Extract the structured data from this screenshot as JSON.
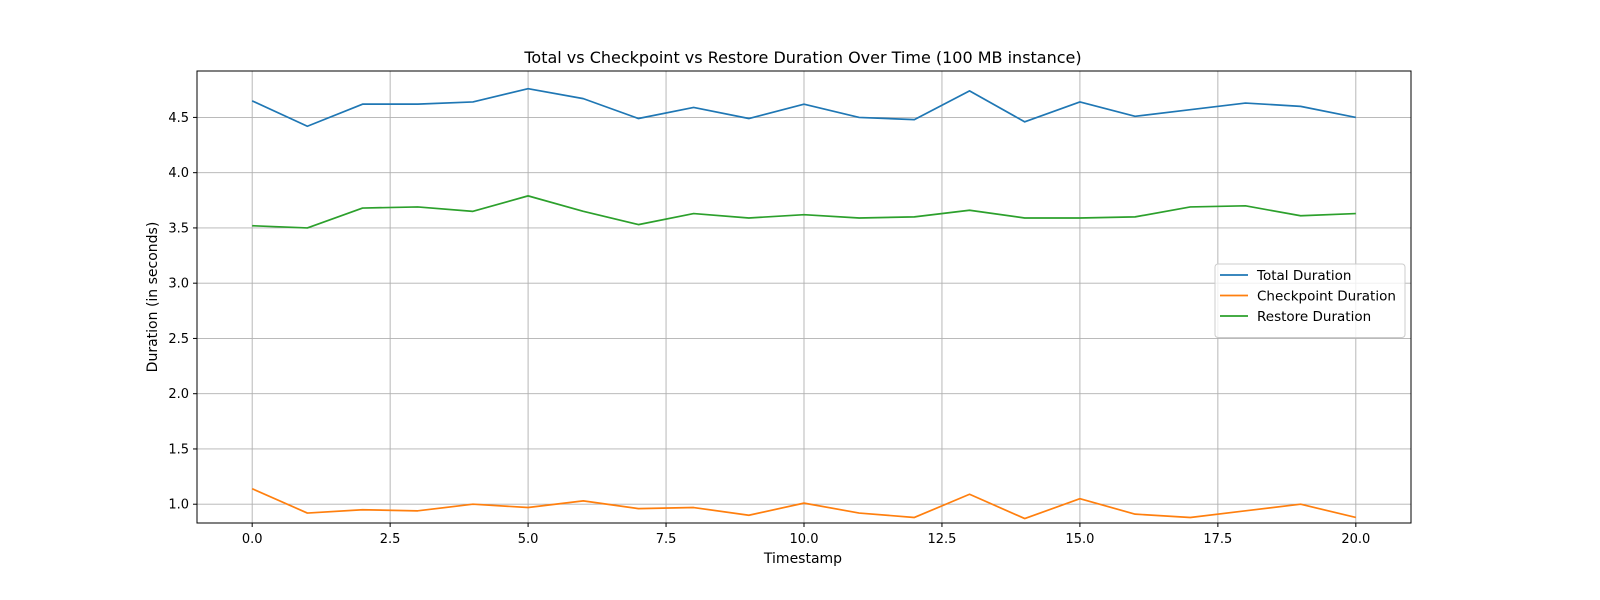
{
  "chart_data": {
    "type": "line",
    "title": "Total vs Checkpoint vs Restore Duration Over Time (100 MB instance)",
    "xlabel": "Timestamp",
    "ylabel": "Duration (in seconds)",
    "xlim": [
      -1,
      21
    ],
    "ylim": [
      0.83,
      4.92
    ],
    "x_ticks": [
      0.0,
      2.5,
      5.0,
      7.5,
      10.0,
      12.5,
      15.0,
      17.5,
      20.0
    ],
    "x_tick_labels": [
      "0.0",
      "2.5",
      "5.0",
      "7.5",
      "10.0",
      "12.5",
      "15.0",
      "17.5",
      "20.0"
    ],
    "y_ticks": [
      1.0,
      1.5,
      2.0,
      2.5,
      3.0,
      3.5,
      4.0,
      4.5
    ],
    "y_tick_labels": [
      "1.0",
      "1.5",
      "2.0",
      "2.5",
      "3.0",
      "3.5",
      "4.0",
      "4.5"
    ],
    "grid": true,
    "legend_position": "center-right",
    "x": [
      0,
      1,
      2,
      3,
      4,
      5,
      6,
      7,
      8,
      9,
      10,
      11,
      12,
      13,
      14,
      15,
      16,
      17,
      18,
      19,
      20
    ],
    "series": [
      {
        "name": "Total Duration",
        "color": "#1f77b4",
        "values": [
          4.65,
          4.42,
          4.62,
          4.62,
          4.64,
          4.76,
          4.67,
          4.49,
          4.59,
          4.49,
          4.62,
          4.5,
          4.48,
          4.74,
          4.46,
          4.64,
          4.51,
          4.57,
          4.63,
          4.6,
          4.5
        ]
      },
      {
        "name": "Checkpoint Duration",
        "color": "#ff7f0e",
        "values": [
          1.14,
          0.92,
          0.95,
          0.94,
          1.0,
          0.97,
          1.03,
          0.96,
          0.97,
          0.9,
          1.01,
          0.92,
          0.88,
          1.09,
          0.87,
          1.05,
          0.91,
          0.88,
          0.94,
          1.0,
          0.88
        ]
      },
      {
        "name": "Restore Duration",
        "color": "#2ca02c",
        "values": [
          3.52,
          3.5,
          3.68,
          3.69,
          3.65,
          3.79,
          3.65,
          3.53,
          3.63,
          3.59,
          3.62,
          3.59,
          3.6,
          3.66,
          3.59,
          3.59,
          3.6,
          3.69,
          3.7,
          3.61,
          3.63
        ]
      }
    ]
  }
}
